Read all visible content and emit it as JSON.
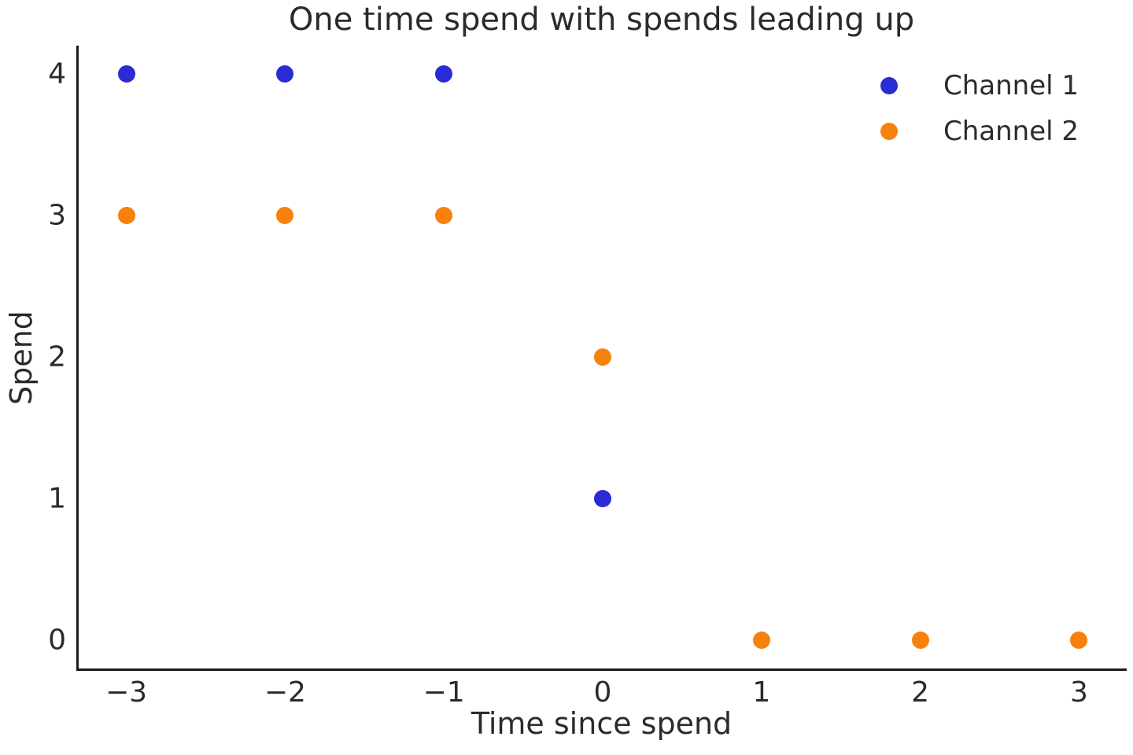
{
  "chart_data": {
    "type": "scatter",
    "title": "One time spend with spends leading up",
    "xlabel": "Time since spend",
    "ylabel": "Spend",
    "xlim": [
      -3.3,
      3.3
    ],
    "ylim": [
      -0.2,
      4.2
    ],
    "grid": false,
    "legend_position": "upper right",
    "background_color": "#ffffff",
    "spine_color": "#1a1a1a",
    "text_color": "#2b2b2b",
    "x_ticks": [
      {
        "value": -3,
        "label": "−3"
      },
      {
        "value": -2,
        "label": "−2"
      },
      {
        "value": -1,
        "label": "−1"
      },
      {
        "value": 0,
        "label": "0"
      },
      {
        "value": 1,
        "label": "1"
      },
      {
        "value": 2,
        "label": "2"
      },
      {
        "value": 3,
        "label": "3"
      }
    ],
    "y_ticks": [
      {
        "value": 0,
        "label": "0"
      },
      {
        "value": 1,
        "label": "1"
      },
      {
        "value": 2,
        "label": "2"
      },
      {
        "value": 3,
        "label": "3"
      },
      {
        "value": 4,
        "label": "4"
      }
    ],
    "series": [
      {
        "name": "Channel 1",
        "color": "#2b2bd6",
        "points": [
          [
            -3,
            4
          ],
          [
            -2,
            4
          ],
          [
            -1,
            4
          ],
          [
            0,
            1
          ]
        ]
      },
      {
        "name": "Channel 2",
        "color": "#f6810c",
        "points": [
          [
            -3,
            3
          ],
          [
            -2,
            3
          ],
          [
            -1,
            3
          ],
          [
            0,
            2
          ],
          [
            1,
            0
          ],
          [
            2,
            0
          ],
          [
            3,
            0
          ]
        ]
      }
    ]
  }
}
